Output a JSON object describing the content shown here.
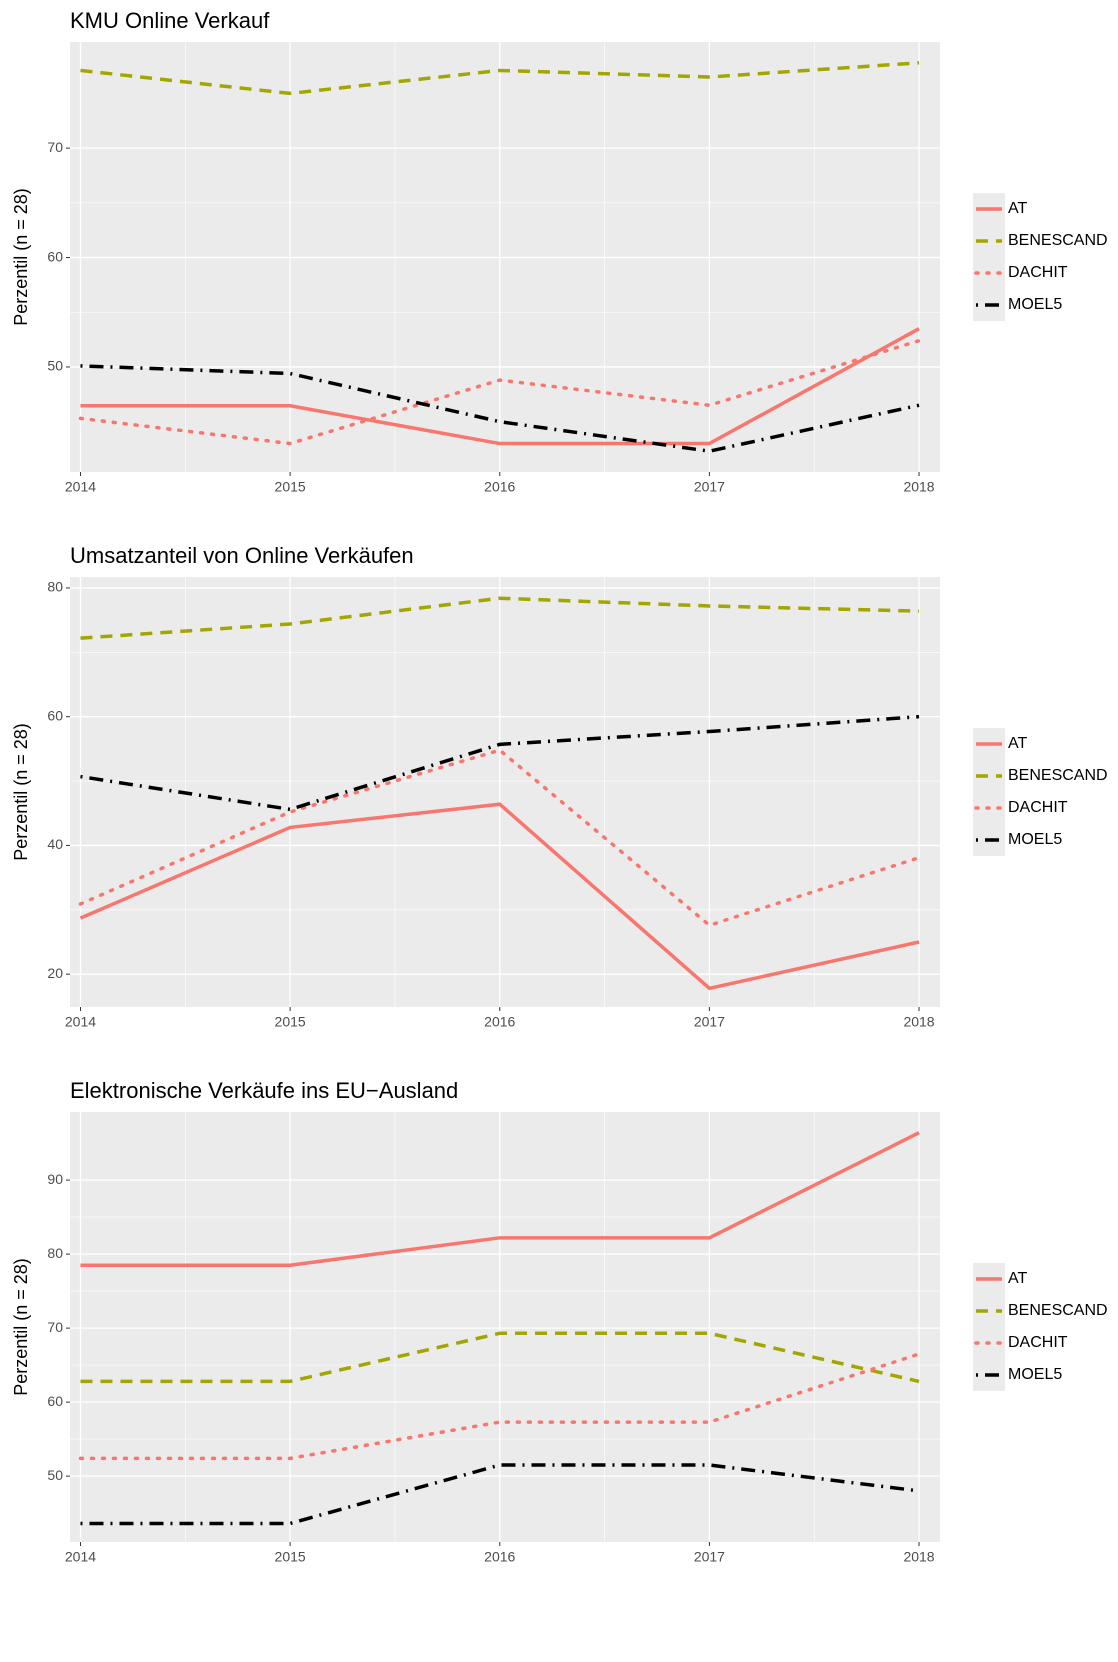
{
  "chart_data": [
    {
      "type": "line",
      "title": "KMU Online Verkauf",
      "y_label": "Perzentil (n = 28)",
      "x": [
        2014,
        2015,
        2016,
        2017,
        2018
      ],
      "xlim": [
        2013.95,
        2018.1
      ],
      "xticks": [
        2014,
        2015,
        2016,
        2017,
        2018
      ],
      "ylim": [
        40.4,
        79.7
      ],
      "yticks": [
        50,
        60,
        70
      ],
      "grid": true,
      "legend": "right",
      "series": [
        {
          "name": "AT",
          "color": "#f8766d",
          "dash": "solid",
          "values": [
            46.45,
            46.45,
            43.0,
            43.0,
            53.5
          ]
        },
        {
          "name": "BENESCAND",
          "color": "#a3a500",
          "dash": "dashed",
          "values": [
            77.1,
            75.0,
            77.1,
            76.5,
            77.8
          ]
        },
        {
          "name": "DACHIT",
          "color": "#f8766d",
          "dash": "dotted",
          "values": [
            45.3,
            43.0,
            48.8,
            46.5,
            52.4
          ]
        },
        {
          "name": "MOEL5",
          "color": "#000000",
          "dash": "dotdash",
          "values": [
            50.1,
            49.4,
            45.0,
            42.3,
            46.5
          ]
        }
      ]
    },
    {
      "type": "line",
      "title": "Umsatzanteil von Online Verkäufen",
      "y_label": "Perzentil (n = 28)",
      "x": [
        2014,
        2015,
        2016,
        2017,
        2018
      ],
      "xlim": [
        2013.95,
        2018.1
      ],
      "xticks": [
        2014,
        2015,
        2016,
        2017,
        2018
      ],
      "ylim": [
        14.9,
        81.7
      ],
      "yticks": [
        20,
        40,
        60,
        80
      ],
      "grid": true,
      "legend": "right",
      "series": [
        {
          "name": "AT",
          "color": "#f8766d",
          "dash": "solid",
          "values": [
            28.7,
            42.8,
            46.4,
            17.8,
            25.0
          ]
        },
        {
          "name": "BENESCAND",
          "color": "#a3a500",
          "dash": "dashed",
          "values": [
            72.2,
            74.4,
            78.4,
            77.2,
            76.4
          ]
        },
        {
          "name": "DACHIT",
          "color": "#f8766d",
          "dash": "dotted",
          "values": [
            30.9,
            45.2,
            54.8,
            27.6,
            38.1
          ]
        },
        {
          "name": "MOEL5",
          "color": "#000000",
          "dash": "dotdash",
          "values": [
            50.7,
            45.6,
            55.7,
            57.7,
            60.0
          ]
        }
      ]
    },
    {
      "type": "line",
      "title": "Elektronische Verkäufe ins EU−Ausland",
      "y_label": "Perzentil (n = 28)",
      "x": [
        2014,
        2015,
        2016,
        2017,
        2018
      ],
      "xlim": [
        2013.95,
        2018.1
      ],
      "xticks": [
        2014,
        2015,
        2016,
        2017,
        2018
      ],
      "ylim": [
        41.1,
        99.2
      ],
      "yticks": [
        50,
        60,
        70,
        80,
        90
      ],
      "grid": true,
      "legend": "right",
      "series": [
        {
          "name": "AT",
          "color": "#f8766d",
          "dash": "solid",
          "values": [
            78.5,
            78.5,
            82.2,
            82.2,
            96.4
          ]
        },
        {
          "name": "BENESCAND",
          "color": "#a3a500",
          "dash": "dashed",
          "values": [
            62.8,
            62.8,
            69.3,
            69.3,
            62.8
          ]
        },
        {
          "name": "DACHIT",
          "color": "#f8766d",
          "dash": "dotted",
          "values": [
            52.4,
            52.4,
            57.3,
            57.3,
            66.5
          ]
        },
        {
          "name": "MOEL5",
          "color": "#000000",
          "dash": "dotdash",
          "values": [
            43.6,
            43.6,
            51.5,
            51.5,
            48.0
          ]
        }
      ]
    }
  ]
}
